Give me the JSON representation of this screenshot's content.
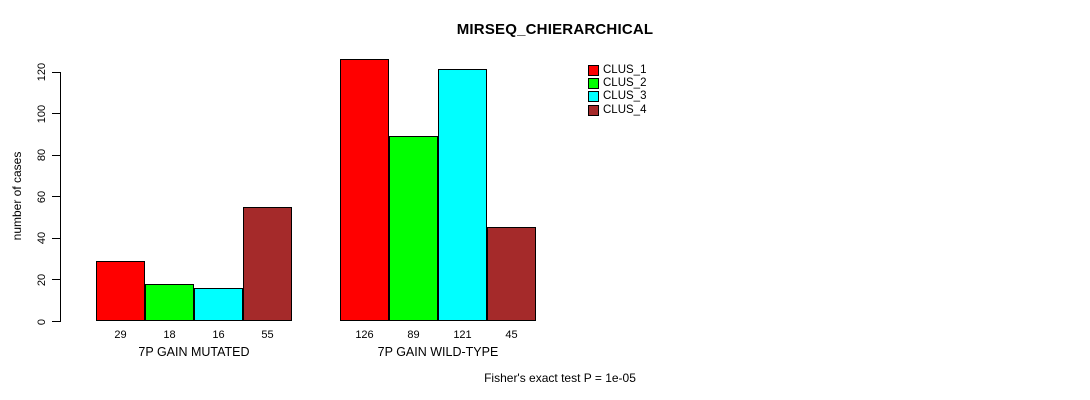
{
  "title": "MIRSEQ_CHIERARCHICAL",
  "ylabel": "number of cases",
  "footer": "Fisher's exact test P = 1e-05",
  "colors": {
    "clus_1": "#FF0000",
    "clus_2": "#00FF00",
    "clus_3": "#00FFFF",
    "clus_4": "#A52A2A",
    "axis": "#000000",
    "background": "#FFFFFF"
  },
  "legend": {
    "entries": [
      {
        "label": "CLUS_1",
        "color": "#FF0000"
      },
      {
        "label": "CLUS_2",
        "color": "#00FF00"
      },
      {
        "label": "CLUS_3",
        "color": "#00FFFF"
      },
      {
        "label": "CLUS_4",
        "color": "#A52A2A"
      }
    ]
  },
  "chart_data": {
    "type": "bar",
    "title": "MIRSEQ_CHIERARCHICAL",
    "xlabel": "",
    "ylabel": "number of cases",
    "ylim": [
      0,
      120
    ],
    "yticks": [
      0,
      20,
      40,
      60,
      80,
      100,
      120
    ],
    "grid": false,
    "legend_position": "top-right",
    "categories": [
      "7P GAIN MUTATED",
      "7P GAIN WILD-TYPE"
    ],
    "series": [
      {
        "name": "CLUS_1",
        "color": "#FF0000",
        "values": [
          29,
          126
        ]
      },
      {
        "name": "CLUS_2",
        "color": "#00FF00",
        "values": [
          18,
          89
        ]
      },
      {
        "name": "CLUS_3",
        "color": "#00FFFF",
        "values": [
          16,
          121
        ]
      },
      {
        "name": "CLUS_4",
        "color": "#A52A2A",
        "values": [
          55,
          45
        ]
      }
    ],
    "bar_value_labels": [
      [
        29,
        18,
        16,
        55
      ],
      [
        126,
        89,
        121,
        45
      ]
    ],
    "annotation": "Fisher's exact test P = 1e-05"
  }
}
